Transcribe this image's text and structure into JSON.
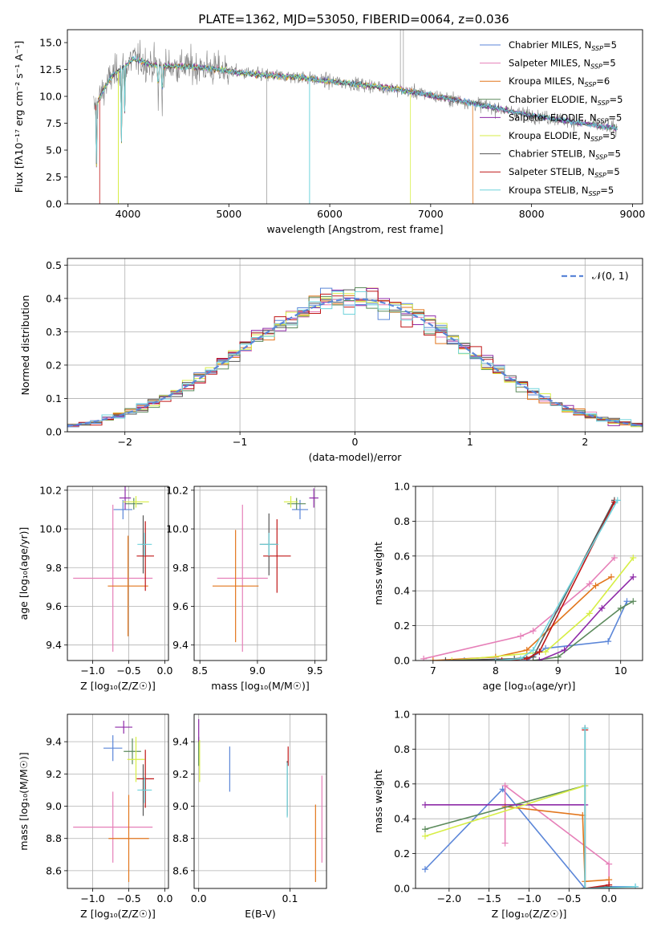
{
  "figure_title": "PLATE=1362, MJD=53050, FIBERID=0064, z=0.036",
  "colors": {
    "chabrier_miles": "#5b86d8",
    "salpeter_miles": "#e67fb8",
    "kroupa_miles": "#e2761c",
    "chabrier_elodie": "#5b8a5b",
    "salpeter_elodie": "#8e2aa8",
    "kroupa_elodie": "#d7ee45",
    "chabrier_stelib": "#555555",
    "salpeter_stelib": "#c01818",
    "kroupa_stelib": "#6fd3dc"
  },
  "chart_data": [
    {
      "id": "spectrum",
      "type": "line",
      "xlabel": "wavelength [Angstrom, rest frame]",
      "ylabel": "Flux [fλ10⁻¹⁷ erg cm⁻² s⁻¹ A⁻¹]",
      "xlim": [
        3400,
        9100
      ],
      "ylim": [
        0,
        16.2
      ],
      "xticks": [
        4000,
        5000,
        6000,
        7000,
        8000,
        9000
      ],
      "yticks": [
        0.0,
        2.5,
        5.0,
        7.5,
        10.0,
        12.5,
        15.0
      ],
      "legend_position": "top-right",
      "legend": [
        "Chabrier MILES, N_SSP=5",
        "Salpeter MILES, N_SSP=5",
        "Kroupa MILES, N_SSP=6",
        "Chabrier ELODIE, N_SSP=5",
        "Salpeter ELODIE, N_SSP=5",
        "Kroupa ELODIE, N_SSP=5",
        "Chabrier STELIB, N_SSP=5",
        "Salpeter STELIB, N_SSP=5",
        "Kroupa STELIB, N_SSP=5"
      ],
      "data_spectrum": {
        "x": [
          3680,
          3750,
          3850,
          3950,
          4050,
          4150,
          4300,
          4500,
          4700,
          4900,
          5100,
          5300,
          5500,
          5700,
          5900,
          6100,
          6300,
          6500,
          6700,
          6900,
          7100,
          7300,
          7500,
          7700,
          7900,
          8100,
          8300,
          8500,
          8700,
          8850
        ],
        "y": [
          9.0,
          10.5,
          12.0,
          12.6,
          13.5,
          13.2,
          12.8,
          12.8,
          12.7,
          12.5,
          12.2,
          12.0,
          11.9,
          11.8,
          11.5,
          11.3,
          11.1,
          10.9,
          10.6,
          10.3,
          9.9,
          9.6,
          9.2,
          8.8,
          8.4,
          8.1,
          7.8,
          7.5,
          7.2,
          7.0
        ]
      },
      "absorption_dips": [
        {
          "x": 3690,
          "y": 1.0
        },
        {
          "x": 3935,
          "y": 4.5
        },
        {
          "x": 3970,
          "y": 6.5
        },
        {
          "x": 4300,
          "y": 8.5
        },
        {
          "x": 4340,
          "y": 7.5
        }
      ],
      "model_end_wavelengths": {
        "salpeter_stelib": 3720,
        "kroupa_miles": 7420,
        "kroupa_elodie": 6800,
        "kroupa_stelib": 8850
      }
    },
    {
      "id": "residuals",
      "type": "histogram",
      "xlabel": "(data-model)/error",
      "ylabel": "Normed distribution",
      "xlim": [
        -2.5,
        2.5
      ],
      "ylim": [
        0,
        0.52
      ],
      "xticks": [
        -2,
        -1,
        0,
        1,
        2
      ],
      "yticks": [
        0.0,
        0.1,
        0.2,
        0.3,
        0.4,
        0.5
      ],
      "legend": [
        "𝒩(0, 1)"
      ],
      "legend_position": "top-right",
      "bin_edges_range": [
        -2.5,
        2.5
      ],
      "bins": 50,
      "normal_curve": {
        "mean": 0,
        "sigma": 1
      }
    },
    {
      "id": "z_age",
      "type": "errorbar",
      "xlabel": "Z [log₁₀(Z/Z☉)]",
      "ylabel": "age  [log₁₀(age/yr)]",
      "xlim": [
        -1.35,
        0.05
      ],
      "ylim": [
        9.32,
        10.22
      ],
      "xticks": [
        -1.0,
        -0.5,
        0.0
      ],
      "yticks": [
        9.4,
        9.6,
        9.8,
        10.0,
        10.2
      ],
      "series": [
        {
          "key": "chabrier_miles",
          "x": -0.58,
          "y": 10.1,
          "xerr": 0.13,
          "yerr": 0.05
        },
        {
          "key": "salpeter_miles",
          "x": -0.72,
          "y": 9.745,
          "xerr": 0.55,
          "yerr": 0.38
        },
        {
          "key": "kroupa_miles",
          "x": -0.51,
          "y": 9.705,
          "xerr": 0.28,
          "yerr": 0.26
        },
        {
          "key": "chabrier_elodie",
          "x": -0.43,
          "y": 10.13,
          "xerr": 0.12,
          "yerr": 0.03
        },
        {
          "key": "salpeter_elodie",
          "x": -0.55,
          "y": 10.16,
          "xerr": 0.08,
          "yerr": 0.06
        },
        {
          "key": "kroupa_elodie",
          "x": -0.4,
          "y": 10.14,
          "xerr": 0.18,
          "yerr": 0.03
        },
        {
          "key": "chabrier_stelib",
          "x": -0.3,
          "y": 9.92,
          "xerr": 0.02,
          "yerr": 0.15
        },
        {
          "key": "salpeter_stelib",
          "x": -0.27,
          "y": 9.86,
          "xerr": 0.12,
          "yerr": 0.18
        },
        {
          "key": "kroupa_stelib",
          "x": -0.28,
          "y": 9.92,
          "xerr": 0.1,
          "yerr": 0.06
        }
      ]
    },
    {
      "id": "mass_age",
      "type": "errorbar",
      "xlabel": "mass [log₁₀(M/M☉)]",
      "ylabel": "",
      "xlim": [
        8.45,
        9.6
      ],
      "ylim": [
        9.32,
        10.22
      ],
      "xticks": [
        8.5,
        9.0,
        9.5
      ],
      "yticks": [
        9.4,
        9.6,
        9.8,
        10.0,
        10.2
      ],
      "series": [
        {
          "key": "chabrier_miles",
          "x": 9.37,
          "y": 10.1,
          "xerr": 0.07,
          "yerr": 0.05
        },
        {
          "key": "salpeter_miles",
          "x": 8.87,
          "y": 9.745,
          "xerr": 0.22,
          "yerr": 0.38
        },
        {
          "key": "kroupa_miles",
          "x": 8.81,
          "y": 9.705,
          "xerr": 0.2,
          "yerr": 0.29
        },
        {
          "key": "chabrier_elodie",
          "x": 9.34,
          "y": 10.13,
          "xerr": 0.08,
          "yerr": 0.03
        },
        {
          "key": "salpeter_elodie",
          "x": 9.49,
          "y": 10.16,
          "xerr": 0.04,
          "yerr": 0.05
        },
        {
          "key": "kroupa_elodie",
          "x": 9.29,
          "y": 10.14,
          "xerr": 0.06,
          "yerr": 0.03
        },
        {
          "key": "chabrier_stelib",
          "x": 9.1,
          "y": 9.92,
          "xerr": 0.08,
          "yerr": 0.16
        },
        {
          "key": "salpeter_stelib",
          "x": 9.17,
          "y": 9.86,
          "xerr": 0.12,
          "yerr": 0.19
        },
        {
          "key": "kroupa_stelib",
          "x": 9.1,
          "y": 9.92,
          "xerr": 0.08,
          "yerr": 0.06
        }
      ]
    },
    {
      "id": "age_weight",
      "type": "line",
      "xlabel": "age  [log₁₀(age/yr)]",
      "ylabel": "mass weight",
      "xlim": [
        6.72,
        10.35
      ],
      "ylim": [
        0,
        1.0
      ],
      "xticks": [
        7,
        8,
        9,
        10
      ],
      "yticks": [
        0.0,
        0.2,
        0.4,
        0.6,
        0.8,
        1.0
      ],
      "series": [
        {
          "key": "chabrier_miles",
          "x": [
            7.5,
            8.5,
            8.8,
            9.8,
            10.1
          ],
          "y": [
            0.0,
            0.0,
            0.07,
            0.11,
            0.34
          ]
        },
        {
          "key": "salpeter_miles",
          "x": [
            6.85,
            8.4,
            8.6,
            9.5,
            9.9
          ],
          "y": [
            0.01,
            0.14,
            0.17,
            0.44,
            0.59
          ]
        },
        {
          "key": "kroupa_miles",
          "x": [
            7.0,
            8.0,
            8.5,
            9.6,
            9.85
          ],
          "y": [
            0.0,
            0.02,
            0.06,
            0.43,
            0.48
          ]
        },
        {
          "key": "chabrier_elodie",
          "x": [
            8.6,
            9.0,
            10.0,
            10.2
          ],
          "y": [
            0.0,
            0.02,
            0.3,
            0.34
          ]
        },
        {
          "key": "salpeter_elodie",
          "x": [
            8.7,
            9.1,
            9.7,
            10.2
          ],
          "y": [
            0.0,
            0.06,
            0.3,
            0.48
          ]
        },
        {
          "key": "kroupa_elodie",
          "x": [
            7.3,
            8.8,
            9.5,
            10.2
          ],
          "y": [
            0.0,
            0.05,
            0.27,
            0.59
          ]
        },
        {
          "key": "chabrier_stelib",
          "x": [
            7.2,
            8.3,
            8.6,
            9.9
          ],
          "y": [
            0.0,
            0.01,
            0.02,
            0.92
          ]
        },
        {
          "key": "salpeter_stelib",
          "x": [
            8.1,
            8.5,
            8.7,
            9.9
          ],
          "y": [
            0.0,
            0.01,
            0.05,
            0.91
          ]
        },
        {
          "key": "kroupa_stelib",
          "x": [
            8.0,
            8.4,
            8.6,
            9.95
          ],
          "y": [
            0.0,
            0.01,
            0.06,
            0.92
          ]
        }
      ]
    },
    {
      "id": "z_mass",
      "type": "errorbar",
      "xlabel": "Z [log₁₀(Z/Z☉)]",
      "ylabel": "mass [log₁₀(M/M☉)]",
      "xlim": [
        -1.35,
        0.05
      ],
      "ylim": [
        8.49,
        9.57
      ],
      "xticks": [
        -1.0,
        -0.5,
        0.0
      ],
      "yticks": [
        8.6,
        8.8,
        9.0,
        9.2,
        9.4
      ],
      "series": [
        {
          "key": "chabrier_miles",
          "x": -0.72,
          "y": 9.36,
          "xerr": 0.13,
          "yerr": 0.08
        },
        {
          "key": "salpeter_miles",
          "x": -0.72,
          "y": 8.87,
          "xerr": 0.55,
          "yerr": 0.22
        },
        {
          "key": "kroupa_miles",
          "x": -0.5,
          "y": 8.8,
          "xerr": 0.28,
          "yerr": 0.27
        },
        {
          "key": "chabrier_elodie",
          "x": -0.45,
          "y": 9.34,
          "xerr": 0.12,
          "yerr": 0.08
        },
        {
          "key": "salpeter_elodie",
          "x": -0.57,
          "y": 9.49,
          "xerr": 0.12,
          "yerr": 0.04
        },
        {
          "key": "kroupa_elodie",
          "x": -0.4,
          "y": 9.29,
          "xerr": 0.12,
          "yerr": 0.14
        },
        {
          "key": "chabrier_stelib",
          "x": -0.3,
          "y": 9.1,
          "xerr": 0.02,
          "yerr": 0.16
        },
        {
          "key": "salpeter_stelib",
          "x": -0.27,
          "y": 9.17,
          "xerr": 0.12,
          "yerr": 0.18
        },
        {
          "key": "kroupa_stelib",
          "x": -0.28,
          "y": 9.1,
          "xerr": 0.1,
          "yerr": 0.08
        }
      ]
    },
    {
      "id": "ebv_mass",
      "type": "errorbar",
      "xlabel": "E(B-V)",
      "ylabel": "",
      "xlim": [
        -0.005,
        0.14
      ],
      "ylim": [
        8.49,
        9.57
      ],
      "xticks": [
        0.0,
        0.1
      ],
      "yticks": [
        8.6,
        8.8,
        9.0,
        9.2,
        9.4
      ],
      "series": [
        {
          "key": "chabrier_miles",
          "x": 0.034,
          "y": 9.23,
          "xerr": 0,
          "yerr": 0.14
        },
        {
          "key": "salpeter_miles",
          "x": 0.135,
          "y": 8.92,
          "xerr": 0,
          "yerr": 0.27
        },
        {
          "key": "kroupa_miles",
          "x": 0.128,
          "y": 8.77,
          "xerr": 0,
          "yerr": 0.24
        },
        {
          "key": "chabrier_elodie",
          "x": 0.0,
          "y": 9.34,
          "xerr": 0,
          "yerr": 0.09
        },
        {
          "key": "salpeter_elodie",
          "x": 0.0,
          "y": 9.47,
          "xerr": 0,
          "yerr": 0.07
        },
        {
          "key": "kroupa_elodie",
          "x": 0.001,
          "y": 9.28,
          "xerr": 0,
          "yerr": 0.13
        },
        {
          "key": "chabrier_stelib",
          "x": 0.097,
          "y": 9.11,
          "xerr": 0,
          "yerr": 0.17
        },
        {
          "key": "salpeter_stelib",
          "x": 0.098,
          "y": 9.31,
          "xerr": 0,
          "yerr": 0.06
        },
        {
          "key": "kroupa_stelib",
          "x": 0.097,
          "y": 9.1,
          "xerr": 0,
          "yerr": 0.17
        }
      ]
    },
    {
      "id": "z_weight",
      "type": "line",
      "xlabel": "Z [log₁₀(Z/Z☉)]",
      "ylabel": "mass weight",
      "xlim": [
        -2.42,
        0.42
      ],
      "ylim": [
        0,
        1.0
      ],
      "xticks": [
        -2.0,
        -1.5,
        -1.0,
        -0.5,
        0.0
      ],
      "yticks": [
        0.0,
        0.2,
        0.4,
        0.6,
        0.8,
        1.0
      ],
      "series": [
        {
          "key": "chabrier_miles",
          "x": [
            -2.3,
            -1.33,
            -0.3,
            0.0,
            0.33
          ],
          "y": [
            0.11,
            0.57,
            0.0,
            0.01,
            0.01
          ]
        },
        {
          "key": "salpeter_miles",
          "x": [
            -1.3,
            -1.3,
            0.0,
            0.0
          ],
          "y": [
            0.26,
            0.59,
            0.14,
            0.0
          ]
        },
        {
          "key": "kroupa_miles",
          "x": [
            -1.3,
            -0.33,
            -0.3,
            0.0
          ],
          "y": [
            0.47,
            0.42,
            0.04,
            0.05
          ]
        },
        {
          "key": "chabrier_elodie",
          "x": [
            -2.3,
            -0.3,
            -0.3
          ],
          "y": [
            0.34,
            0.59,
            0.0
          ]
        },
        {
          "key": "salpeter_elodie",
          "x": [
            -2.3,
            -0.3,
            -0.3
          ],
          "y": [
            0.48,
            0.48,
            0.0
          ]
        },
        {
          "key": "kroupa_elodie",
          "x": [
            -2.3,
            -0.3,
            -0.3
          ],
          "y": [
            0.3,
            0.59,
            0.0
          ]
        },
        {
          "key": "chabrier_stelib",
          "x": [
            -0.3,
            -0.3,
            0.0
          ],
          "y": [
            0.92,
            0.0,
            0.01
          ]
        },
        {
          "key": "salpeter_stelib",
          "x": [
            -0.3,
            -0.3,
            0.0
          ],
          "y": [
            0.91,
            0.0,
            0.02
          ]
        },
        {
          "key": "kroupa_stelib",
          "x": [
            -0.3,
            -0.3,
            0.33
          ],
          "y": [
            0.92,
            0.0,
            0.01
          ]
        }
      ]
    }
  ]
}
